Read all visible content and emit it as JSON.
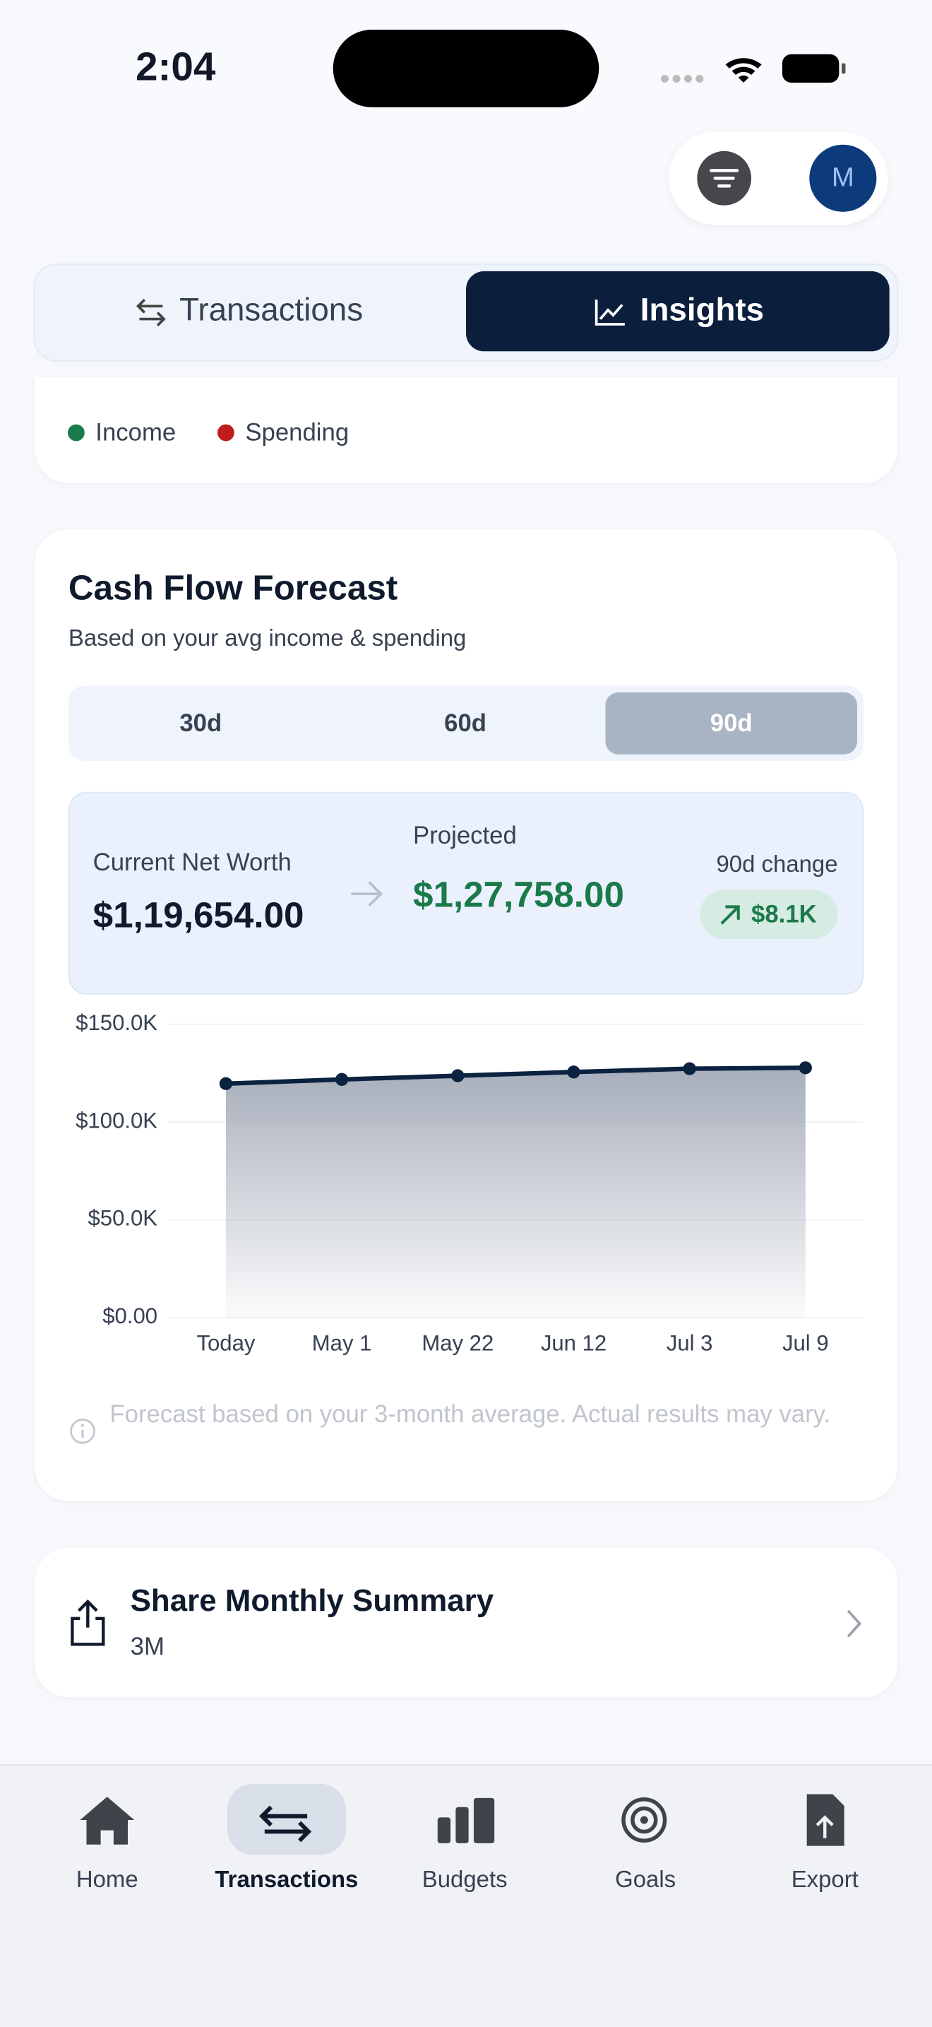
{
  "status_bar": {
    "time": "2:04"
  },
  "header": {
    "avatar": "M"
  },
  "tabs": [
    "Transactions",
    "Insights"
  ],
  "legend": [
    "Income",
    "Spending"
  ],
  "forecast": {
    "title": "Cash Flow Forecast",
    "subtitle": "Based on your avg income & spending",
    "periods": [
      "30d",
      "60d",
      "90d"
    ],
    "current_label": "Current Net Worth",
    "current_value": "$1,19,654.00",
    "projected_label": "Projected",
    "projected_value": "$1,27,758.00",
    "change_label": "90d change",
    "change_value": "$8.1K",
    "note": "Forecast based on your 3-month average. Actual results may vary.",
    "chart_data": {
      "type": "line",
      "categories": [
        "Today",
        "May 1",
        "May 22",
        "Jun 12",
        "Jul 3",
        "Jul 9"
      ],
      "values": [
        119654,
        121800,
        123700,
        125600,
        127300,
        127758
      ],
      "ylim": [
        0,
        150000
      ],
      "yticks": [
        {
          "value": 0,
          "label": "$0.00"
        },
        {
          "value": 50000,
          "label": "$50.0K"
        },
        {
          "value": 100000,
          "label": "$100.0K"
        },
        {
          "value": 150000,
          "label": "$150.0K"
        }
      ],
      "color": "#0b2240",
      "grid": true
    }
  },
  "share": {
    "title": "Share Monthly Summary",
    "subtitle": "3M"
  },
  "nav": [
    "Home",
    "Transactions",
    "Budgets",
    "Goals",
    "Export"
  ]
}
